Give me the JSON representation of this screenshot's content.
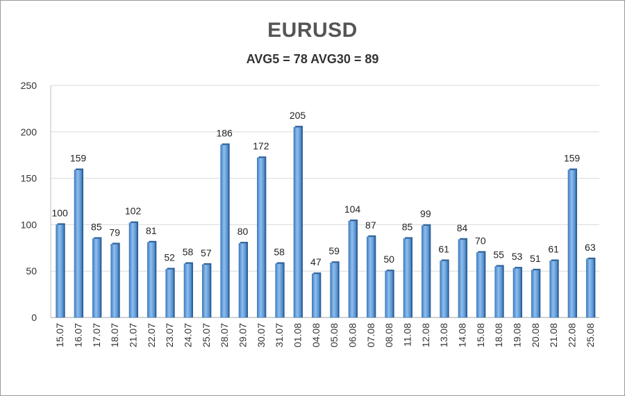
{
  "chart_data": {
    "type": "bar",
    "title": "EURUSD",
    "subtitle": "AVG5 = 78 AVG30 = 89",
    "xlabel": "",
    "ylabel": "",
    "ylim": [
      0,
      250
    ],
    "yticks": [
      0,
      50,
      100,
      150,
      200,
      250
    ],
    "grid": true,
    "legend": "none",
    "bar_color": "#5b9bd5",
    "categories": [
      "15.07",
      "16.07",
      "17.07",
      "18.07",
      "21.07",
      "22.07",
      "23.07",
      "24.07",
      "25.07",
      "28.07",
      "29.07",
      "30.07",
      "31.07",
      "01.08",
      "04.08",
      "05.08",
      "06.08",
      "07.08",
      "08.08",
      "11.08",
      "12.08",
      "13.08",
      "14.08",
      "15.08",
      "18.08",
      "19.08",
      "20.08",
      "21.08",
      "22.08",
      "25.08"
    ],
    "values": [
      100,
      159,
      85,
      79,
      102,
      81,
      52,
      58,
      57,
      186,
      80,
      172,
      58,
      205,
      47,
      59,
      104,
      87,
      50,
      85,
      99,
      61,
      84,
      70,
      55,
      53,
      51,
      61,
      159,
      63
    ]
  }
}
